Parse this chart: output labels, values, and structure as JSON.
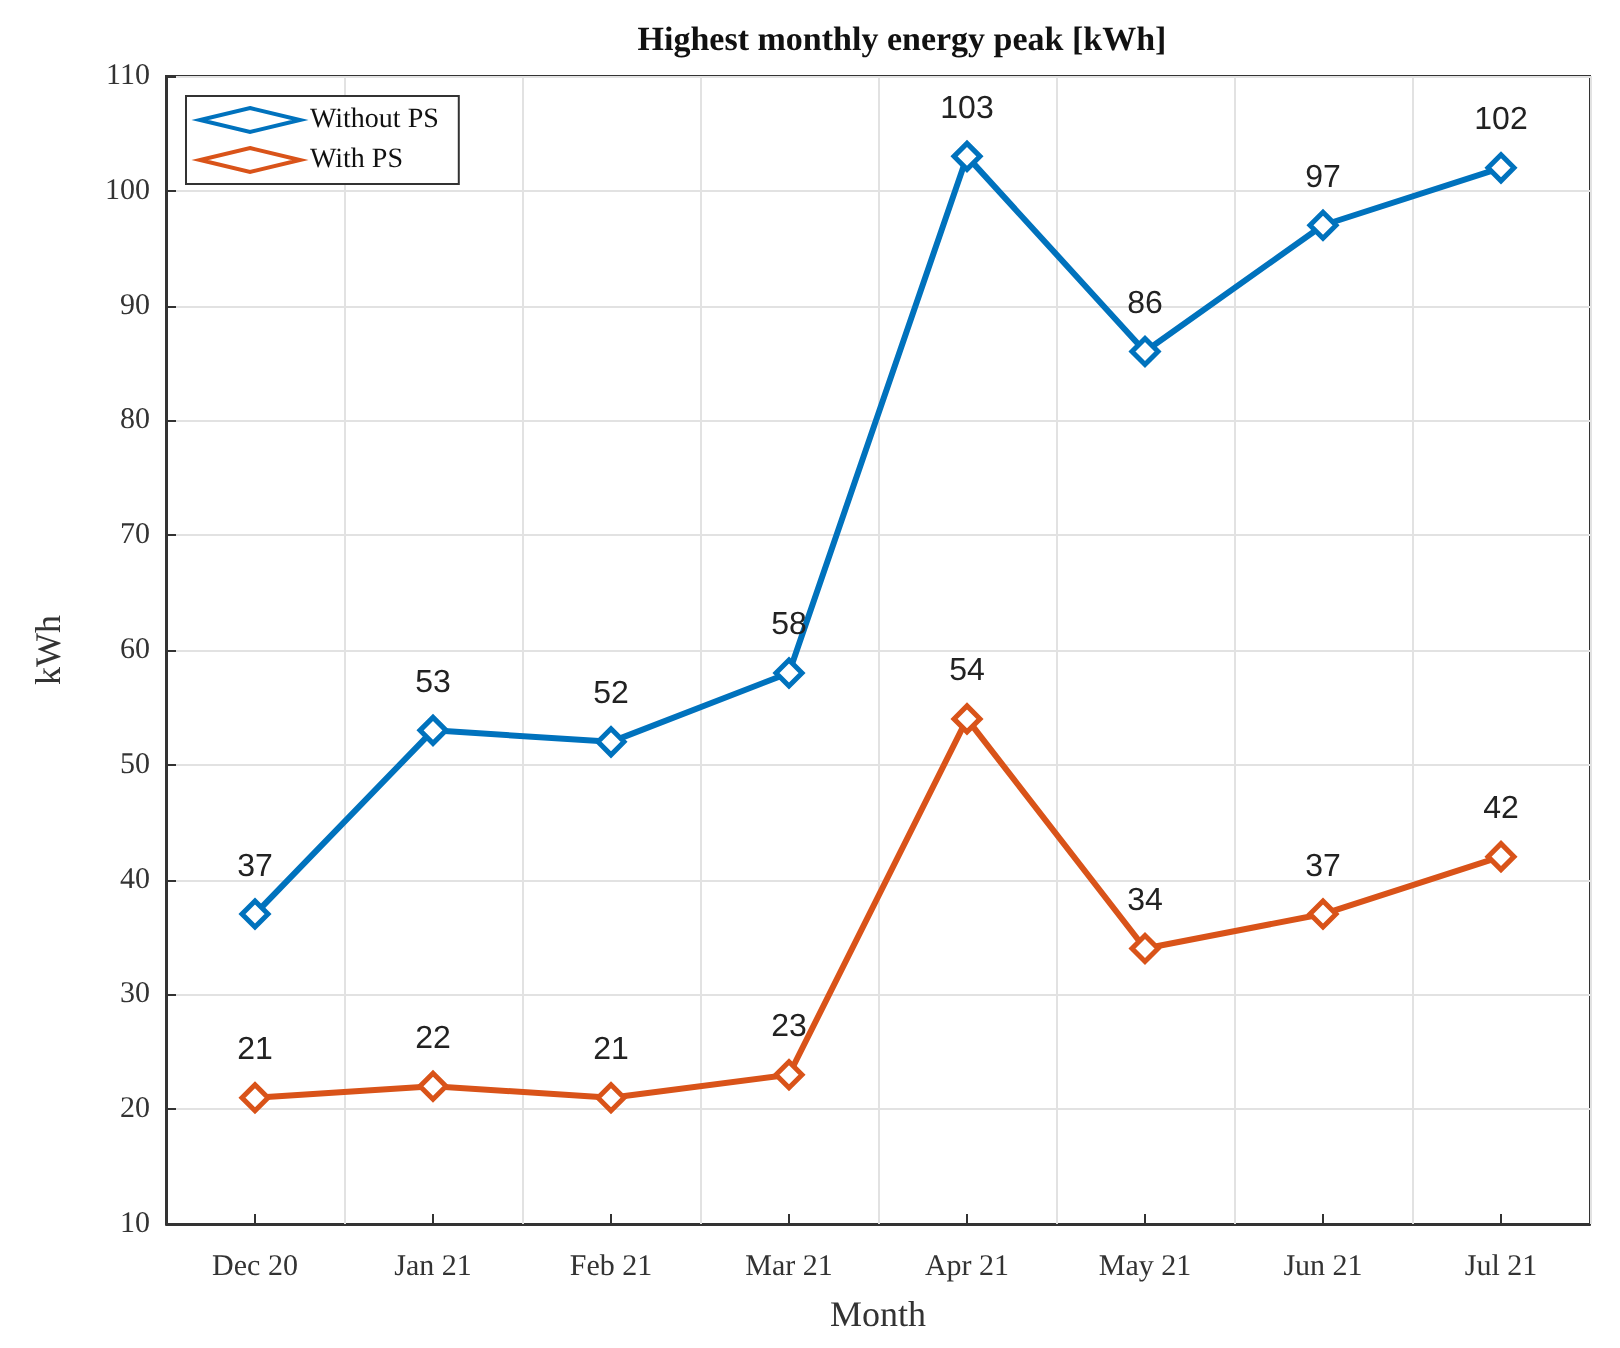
{
  "chart_data": {
    "type": "line",
    "title": "Highest monthly energy peak [kWh]",
    "xlabel": "Month",
    "ylabel": "kWh",
    "categories": [
      "Dec 20",
      "Jan 21",
      "Feb 21",
      "Mar 21",
      "Apr 21",
      "May 21",
      "Jun 21",
      "Jul 21"
    ],
    "series": [
      {
        "name": "Without PS",
        "color": "#0072bd",
        "values": [
          37,
          53,
          52,
          58,
          103,
          86,
          97,
          102
        ]
      },
      {
        "name": "With PS",
        "color": "#d95319",
        "values": [
          21,
          22,
          21,
          23,
          54,
          34,
          37,
          42
        ]
      }
    ],
    "ylim": [
      10,
      110
    ],
    "yticks": [
      10,
      20,
      30,
      40,
      50,
      60,
      70,
      80,
      90,
      100,
      110
    ],
    "grid": true,
    "legend": "top left",
    "marker": "diamond",
    "line_style": "solid",
    "data_labels": true
  }
}
